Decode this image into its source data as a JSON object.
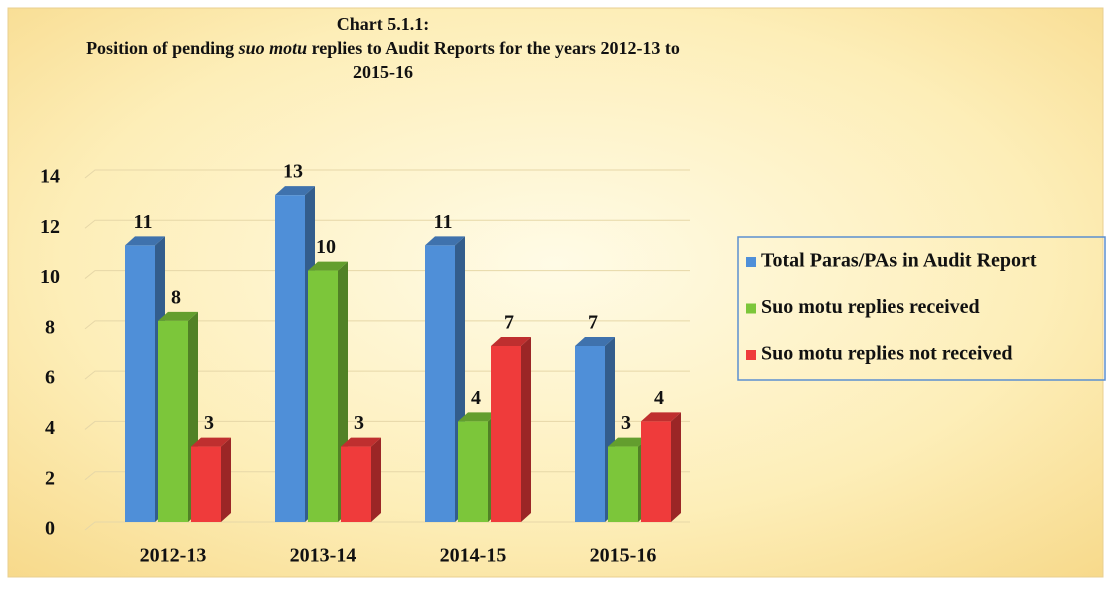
{
  "chart_data": {
    "type": "bar3d",
    "title": "Chart 5.1.1:",
    "subtitle": [
      "Position of pending ",
      "suo motu",
      " replies to Audit Reports for the years 2012-13 to",
      "2015-16"
    ],
    "categories": [
      "2012-13",
      "2013-14",
      "2014-15",
      "2015-16"
    ],
    "series": [
      {
        "name": "Total Paras/PAs in Audit Report",
        "color": "#4f8fd8",
        "values": [
          11,
          13,
          11,
          7
        ]
      },
      {
        "name": "Suo motu replies received",
        "color": "#7cc63a",
        "values": [
          8,
          10,
          4,
          3
        ]
      },
      {
        "name": "Suo motu replies not received",
        "color": "#ef3b3b",
        "values": [
          3,
          3,
          7,
          4
        ]
      }
    ],
    "ylim": [
      0,
      14
    ],
    "yticks": [
      0,
      2,
      4,
      6,
      8,
      10,
      12,
      14
    ],
    "grid": true,
    "legend": "right"
  }
}
